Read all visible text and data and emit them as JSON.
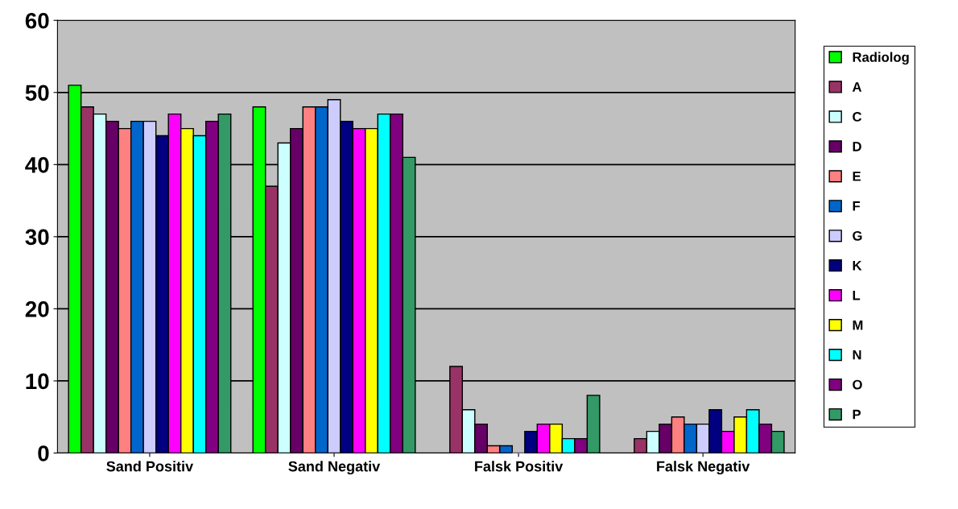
{
  "chart_data": {
    "type": "bar",
    "categories": [
      "Sand Positiv",
      "Sand Negativ",
      "Falsk Positiv",
      "Falsk Negativ"
    ],
    "ylim": [
      0,
      60
    ],
    "yticks": [
      0,
      10,
      20,
      30,
      40,
      50,
      60
    ],
    "grid": "y",
    "legend": "right",
    "series": [
      {
        "name": "Radiolog",
        "color": "#00ff00",
        "values": [
          51,
          48,
          null,
          null
        ]
      },
      {
        "name": "A",
        "color": "#993366",
        "values": [
          48,
          37,
          12,
          2
        ]
      },
      {
        "name": "C",
        "color": "#ccffff",
        "values": [
          47,
          43,
          6,
          3
        ]
      },
      {
        "name": "D",
        "color": "#660066",
        "values": [
          46,
          45,
          4,
          4
        ]
      },
      {
        "name": "E",
        "color": "#ff8080",
        "values": [
          45,
          48,
          1,
          5
        ]
      },
      {
        "name": "F",
        "color": "#0066cc",
        "values": [
          46,
          48,
          1,
          4
        ]
      },
      {
        "name": "G",
        "color": "#ccccff",
        "values": [
          46,
          49,
          0,
          4
        ]
      },
      {
        "name": "K",
        "color": "#000080",
        "values": [
          44,
          46,
          3,
          6
        ]
      },
      {
        "name": "L",
        "color": "#ff00ff",
        "values": [
          47,
          45,
          4,
          3
        ]
      },
      {
        "name": "M",
        "color": "#ffff00",
        "values": [
          45,
          45,
          4,
          5
        ]
      },
      {
        "name": "N",
        "color": "#00ffff",
        "values": [
          44,
          47,
          2,
          6
        ]
      },
      {
        "name": "O",
        "color": "#800080",
        "values": [
          46,
          47,
          2,
          4
        ]
      },
      {
        "name": "P",
        "color": "#339966",
        "values": [
          47,
          41,
          8,
          3
        ]
      }
    ]
  }
}
